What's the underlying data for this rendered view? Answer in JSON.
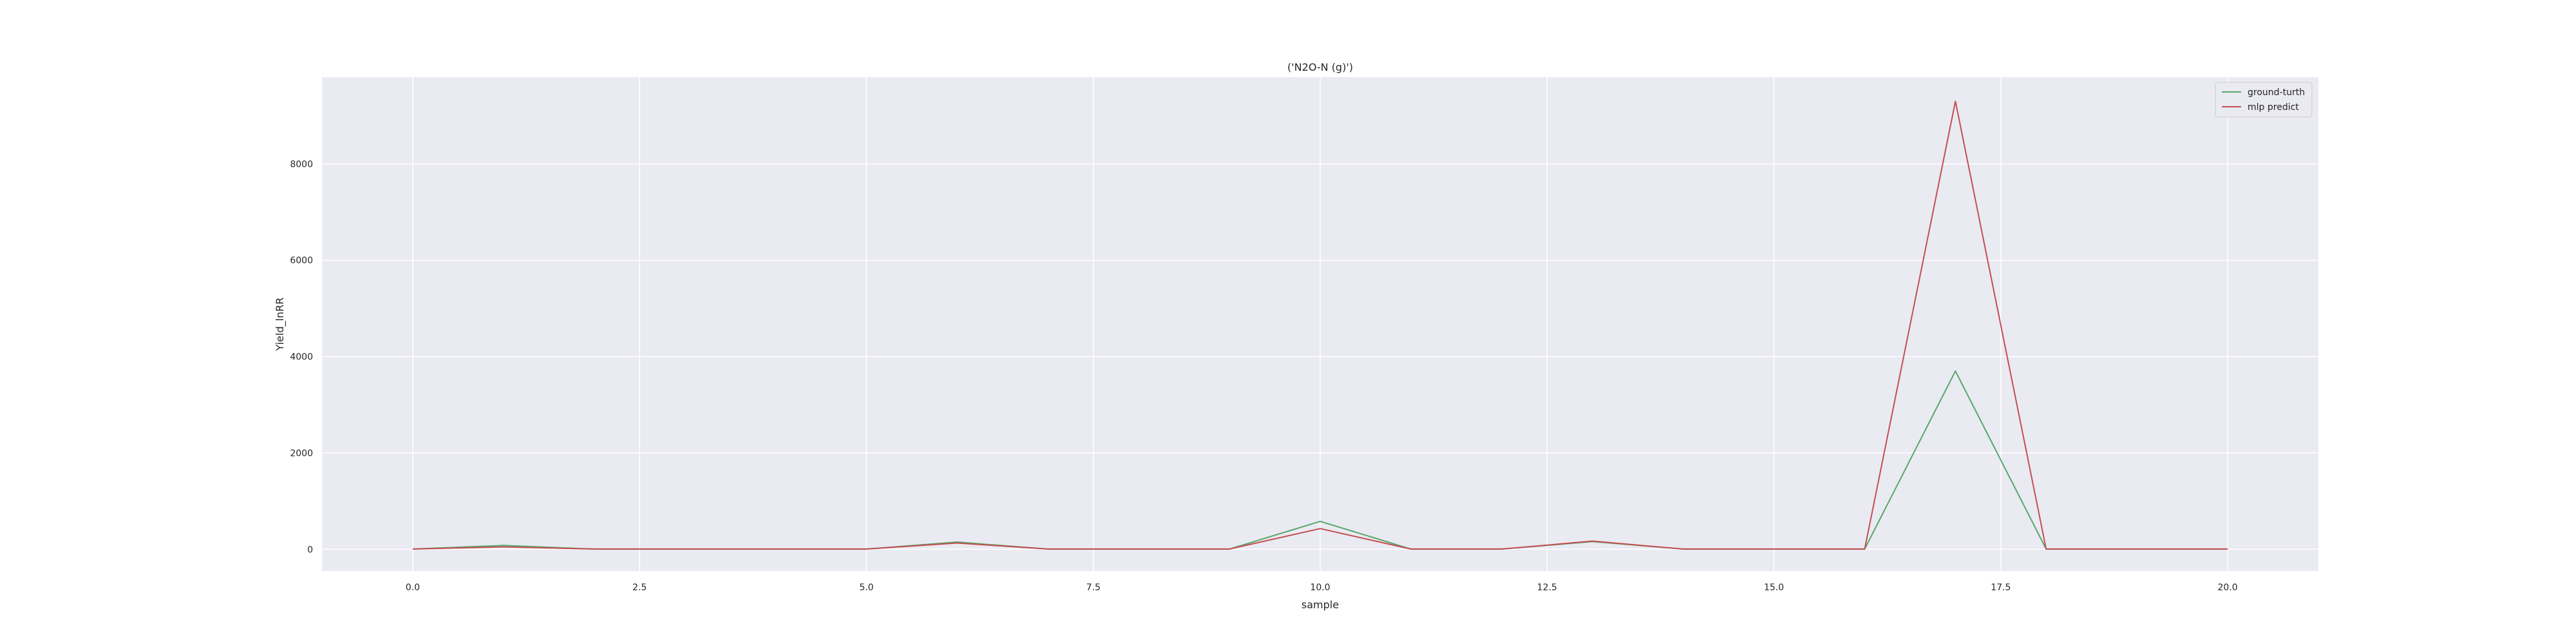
{
  "chart_data": {
    "type": "line",
    "title": "('N2O-N (g)')",
    "xlabel": "sample",
    "ylabel": "Yield_lnRR",
    "x": [
      0,
      1,
      2,
      3,
      4,
      5,
      6,
      7,
      8,
      9,
      10,
      11,
      12,
      13,
      14,
      15,
      16,
      17,
      18,
      19,
      20
    ],
    "xlim": [
      -1,
      21
    ],
    "ylim": [
      -450,
      9800
    ],
    "x_ticks": [
      0,
      2.5,
      5,
      7.5,
      10,
      12.5,
      15,
      17.5,
      20
    ],
    "x_tick_labels": [
      "0.0",
      "2.5",
      "5.0",
      "7.5",
      "10.0",
      "12.5",
      "15.0",
      "17.5",
      "20.0"
    ],
    "y_ticks": [
      0,
      2000,
      4000,
      6000,
      8000
    ],
    "y_tick_labels": [
      "0",
      "2000",
      "4000",
      "6000",
      "8000"
    ],
    "grid": true,
    "legend_position": "top-right",
    "background_color": "#eaeaf2",
    "grid_color": "#ffffff",
    "series": [
      {
        "name": "ground-turth",
        "color": "#55a868",
        "values": [
          5,
          80,
          5,
          5,
          5,
          5,
          150,
          5,
          5,
          5,
          580,
          5,
          5,
          160,
          5,
          5,
          5,
          3700,
          5,
          5,
          5
        ]
      },
      {
        "name": "mlp predict",
        "color": "#c44e52",
        "values": [
          5,
          50,
          5,
          5,
          5,
          5,
          130,
          5,
          5,
          5,
          430,
          5,
          5,
          170,
          5,
          5,
          5,
          9300,
          5,
          5,
          5
        ]
      }
    ]
  }
}
